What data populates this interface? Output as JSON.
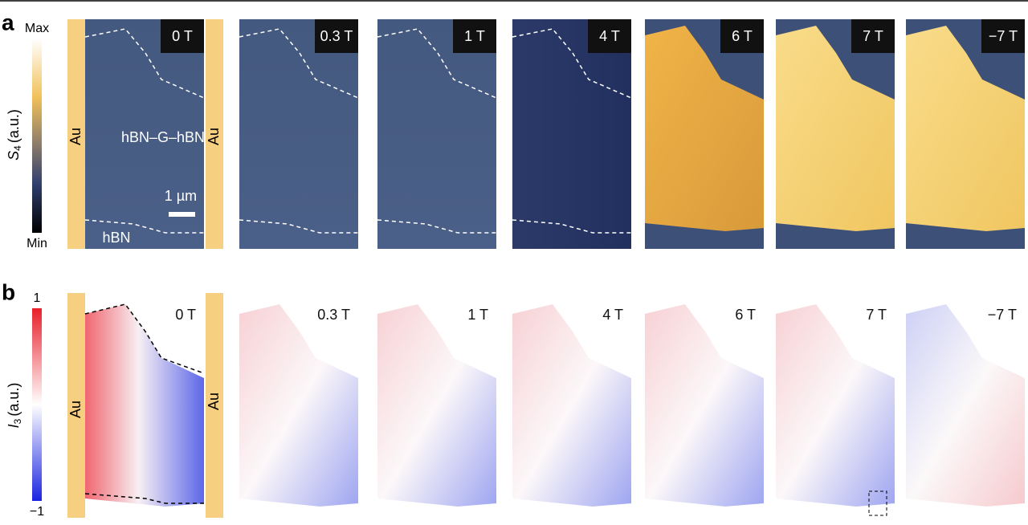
{
  "panel_a": {
    "label": "a",
    "colorbar": {
      "max": "Max",
      "min": "Min",
      "symbol": "S",
      "subscript": "4",
      "unit": "(a.u.)"
    },
    "fields": [
      "0 T",
      "0.3 T",
      "1 T",
      "4 T",
      "6 T",
      "7 T",
      "−7 T"
    ],
    "annotations": {
      "electrode_left": "Au",
      "electrode_right": "Au",
      "sample": "hBN–G–hBN",
      "scale_bar": "1 µm",
      "substrate": "hBN"
    }
  },
  "panel_b": {
    "label": "b",
    "colorbar": {
      "max": "1",
      "min": "−1",
      "symbol": "I",
      "subscript": "3",
      "unit": "(a.u.)"
    },
    "fields": [
      "0 T",
      "0.3 T",
      "1 T",
      "4 T",
      "6 T",
      "7 T",
      "−7 T"
    ],
    "annotations": {
      "electrode_left": "Au",
      "electrode_right": "Au"
    }
  }
}
